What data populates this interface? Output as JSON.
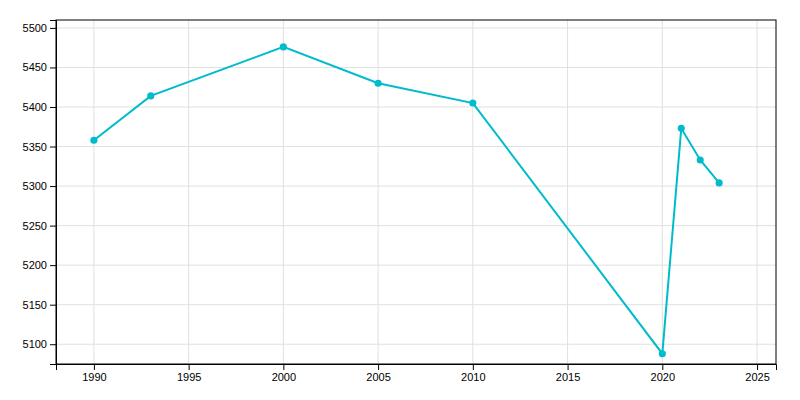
{
  "chart_data": {
    "type": "line",
    "x": [
      1990,
      1993,
      2000,
      2005,
      2010,
      2020,
      2021,
      2022,
      2023
    ],
    "values": [
      5358,
      5414,
      5476,
      5430,
      5405,
      5088,
      5373,
      5333,
      5304
    ],
    "color": "#00BBCC",
    "marker": "circle",
    "xlim": [
      1988,
      2026
    ],
    "ylim": [
      5075,
      5510
    ],
    "xticks": [
      1990,
      1995,
      2000,
      2005,
      2010,
      2015,
      2020,
      2025
    ],
    "yticks": [
      5100,
      5150,
      5200,
      5250,
      5300,
      5350,
      5400,
      5450,
      5500
    ],
    "grid": true
  }
}
